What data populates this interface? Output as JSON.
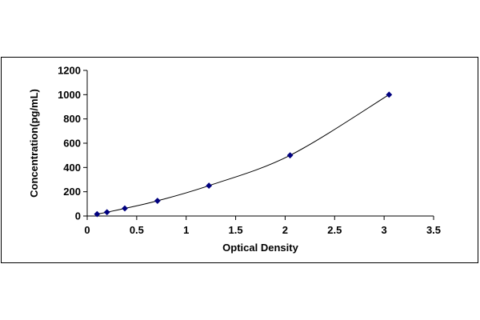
{
  "chart_data": {
    "type": "scatter",
    "title": "",
    "xlabel": "Optical Density",
    "ylabel": "Concentration(pg/mL)",
    "xlim": [
      0,
      3.5
    ],
    "ylim": [
      0,
      1200
    ],
    "x_ticks": [
      "0",
      "0.5",
      "1",
      "1.5",
      "2",
      "2.5",
      "3",
      "3.5"
    ],
    "x_tick_values": [
      0,
      0.5,
      1,
      1.5,
      2,
      2.5,
      3,
      3.5
    ],
    "y_ticks": [
      "0",
      "200",
      "400",
      "600",
      "800",
      "1000",
      "1200"
    ],
    "y_tick_values": [
      0,
      200,
      400,
      600,
      800,
      1000,
      1200
    ],
    "grid": false,
    "legend": "none",
    "marker_color": "#00007F",
    "line_color": "#000000",
    "series": [
      {
        "type": "scatter",
        "x": [
          0.1,
          0.2,
          0.38,
          0.71,
          1.23,
          2.05,
          3.05
        ],
        "y": [
          15.6,
          31.2,
          62.5,
          125,
          250,
          500,
          1000
        ]
      }
    ],
    "trendline": "smooth fitted curve through points"
  }
}
